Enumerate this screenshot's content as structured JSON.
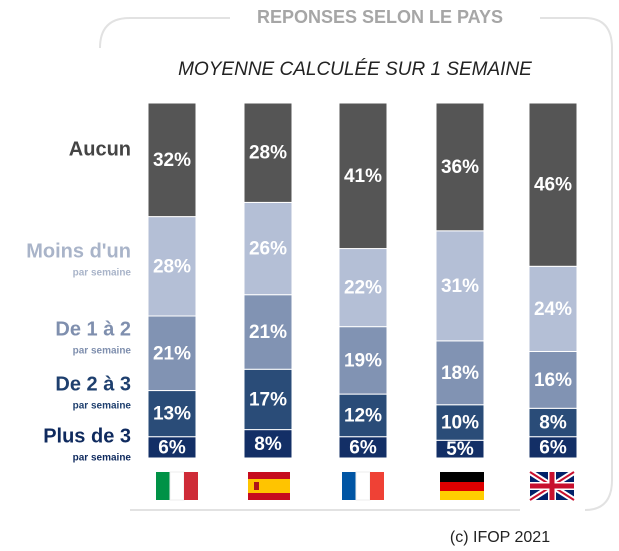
{
  "chart_data": {
    "type": "stacked_bar",
    "title": "REPONSES SELON LE PAYS",
    "subtitle": "MOYENNE CALCULÉE SUR 1 SEMAINE",
    "source": "(c) IFOP 2021",
    "categories": [
      null,
      null,
      null,
      null,
      null
    ],
    "ylim": [
      0,
      100
    ],
    "series": [
      {
        "name": "Plus de 3",
        "note": "par semaine",
        "color": "#132f66",
        "values": [
          6,
          8,
          6,
          5,
          6
        ],
        "value_labels": [
          "6%",
          "8%",
          "6%",
          "5%",
          "6%"
        ]
      },
      {
        "name": "De 2 à 3",
        "note": "par semaine",
        "color": "#2a4c78",
        "values": [
          13,
          17,
          12,
          10,
          8
        ],
        "value_labels": [
          "13%",
          "17%",
          "12%",
          "10%",
          "8%"
        ]
      },
      {
        "name": "De 1 à 2",
        "note": "par semaine",
        "color": "#8193b3",
        "values": [
          21,
          21,
          19,
          18,
          16
        ],
        "value_labels": [
          "21%",
          "21%",
          "19%",
          "18%",
          "16%"
        ]
      },
      {
        "name": "Moins d'un",
        "note": "par semaine",
        "color": "#b4bfd6",
        "values": [
          28,
          26,
          22,
          31,
          24
        ],
        "value_labels": [
          "28%",
          "26%",
          "22%",
          "31%",
          "24%"
        ]
      },
      {
        "name": "Aucun",
        "color": "#555555",
        "values": [
          32,
          28,
          41,
          36,
          46
        ],
        "value_labels": [
          "32%",
          "28%",
          "41%",
          "36%",
          "46%"
        ]
      }
    ]
  }
}
